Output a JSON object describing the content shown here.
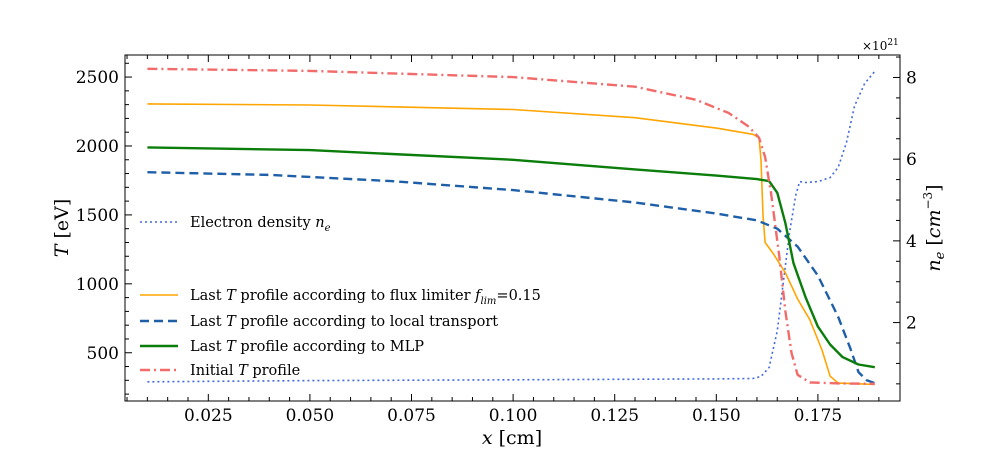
{
  "chart_data": {
    "type": "line",
    "xlabel": "x [cm]",
    "ylabel_left": "T [eV]",
    "ylabel_right": "n_e [cm^-3]",
    "right_axis_multiplier": "×10^21",
    "xlim": [
      0.0045,
      0.1952
    ],
    "ylim_left": [
      150,
      2660
    ],
    "ylim_right": [
      0.08,
      8.55
    ],
    "x_ticks": [
      0.025,
      0.05,
      0.075,
      0.1,
      0.125,
      0.15,
      0.175
    ],
    "x_tick_labels": [
      "0.025",
      "0.050",
      "0.075",
      "0.100",
      "0.125",
      "0.150",
      "0.175"
    ],
    "y_left_ticks": [
      500,
      1000,
      1500,
      2000,
      2500
    ],
    "y_left_tick_labels": [
      "500",
      "1000",
      "1500",
      "2000",
      "2500"
    ],
    "y_right_ticks": [
      2,
      4,
      6,
      8
    ],
    "y_right_tick_labels": [
      "2",
      "4",
      "6",
      "8"
    ],
    "grid": false,
    "legend": [
      {
        "label": "Electron density n_e",
        "color": "#4169e1",
        "dash": "dotted",
        "width": 1.6
      },
      {
        "label": "Last T profile according to flux limiter f_lim=0.15",
        "color": "#ffa500",
        "dash": "solid",
        "width": 1.6
      },
      {
        "label": "Last T profile according to local transport",
        "color": "#1f5fa8",
        "dash": "dashed",
        "width": 2.4
      },
      {
        "label": "Last T profile according to MLP",
        "color": "#0a7d0a",
        "dash": "solid",
        "width": 2.4
      },
      {
        "label": "Initial T profile",
        "color": "#f26b6b",
        "dash": "dashdot",
        "width": 2.4
      }
    ],
    "series": [
      {
        "name": "Electron density n_e",
        "axis": "right",
        "points": [
          [
            0.01,
            0.55
          ],
          [
            0.05,
            0.58
          ],
          [
            0.1,
            0.6
          ],
          [
            0.15,
            0.62
          ],
          [
            0.159,
            0.63
          ],
          [
            0.161,
            0.68
          ],
          [
            0.163,
            0.9
          ],
          [
            0.165,
            1.8
          ],
          [
            0.1665,
            3.0
          ],
          [
            0.168,
            4.2
          ],
          [
            0.1695,
            5.1
          ],
          [
            0.1705,
            5.45
          ],
          [
            0.172,
            5.43
          ],
          [
            0.175,
            5.45
          ],
          [
            0.178,
            5.55
          ],
          [
            0.18,
            5.8
          ],
          [
            0.182,
            6.4
          ],
          [
            0.184,
            7.3
          ],
          [
            0.1865,
            7.85
          ],
          [
            0.189,
            8.15
          ]
        ]
      },
      {
        "name": "Last T profile according to flux limiter f_lim=0.15",
        "axis": "left",
        "points": [
          [
            0.01,
            2305
          ],
          [
            0.05,
            2297
          ],
          [
            0.1,
            2265
          ],
          [
            0.13,
            2205
          ],
          [
            0.15,
            2130
          ],
          [
            0.159,
            2085
          ],
          [
            0.1605,
            2060
          ],
          [
            0.161,
            1900
          ],
          [
            0.1615,
            1500
          ],
          [
            0.162,
            1300
          ],
          [
            0.164,
            1220
          ],
          [
            0.167,
            1080
          ],
          [
            0.17,
            890
          ],
          [
            0.173,
            740
          ],
          [
            0.176,
            520
          ],
          [
            0.178,
            330
          ],
          [
            0.18,
            280
          ],
          [
            0.185,
            275
          ],
          [
            0.189,
            270
          ]
        ]
      },
      {
        "name": "Last T profile according to local transport",
        "axis": "left",
        "points": [
          [
            0.01,
            1810
          ],
          [
            0.04,
            1790
          ],
          [
            0.07,
            1745
          ],
          [
            0.1,
            1680
          ],
          [
            0.13,
            1590
          ],
          [
            0.15,
            1510
          ],
          [
            0.16,
            1460
          ],
          [
            0.165,
            1400
          ],
          [
            0.17,
            1270
          ],
          [
            0.175,
            1060
          ],
          [
            0.18,
            760
          ],
          [
            0.183,
            530
          ],
          [
            0.185,
            360
          ],
          [
            0.187,
            300
          ],
          [
            0.189,
            280
          ]
        ]
      },
      {
        "name": "Last T profile according to MLP",
        "axis": "left",
        "points": [
          [
            0.01,
            1990
          ],
          [
            0.05,
            1970
          ],
          [
            0.1,
            1900
          ],
          [
            0.13,
            1830
          ],
          [
            0.15,
            1785
          ],
          [
            0.16,
            1760
          ],
          [
            0.163,
            1745
          ],
          [
            0.165,
            1660
          ],
          [
            0.167,
            1440
          ],
          [
            0.169,
            1150
          ],
          [
            0.172,
            900
          ],
          [
            0.175,
            690
          ],
          [
            0.178,
            560
          ],
          [
            0.181,
            470
          ],
          [
            0.185,
            415
          ],
          [
            0.189,
            395
          ]
        ]
      },
      {
        "name": "Initial T profile",
        "axis": "left",
        "points": [
          [
            0.01,
            2560
          ],
          [
            0.05,
            2545
          ],
          [
            0.1,
            2500
          ],
          [
            0.13,
            2430
          ],
          [
            0.145,
            2335
          ],
          [
            0.153,
            2240
          ],
          [
            0.158,
            2140
          ],
          [
            0.1605,
            2060
          ],
          [
            0.162,
            1920
          ],
          [
            0.1635,
            1650
          ],
          [
            0.1655,
            1200
          ],
          [
            0.167,
            800
          ],
          [
            0.1685,
            500
          ],
          [
            0.17,
            340
          ],
          [
            0.173,
            285
          ],
          [
            0.18,
            278
          ],
          [
            0.189,
            275
          ]
        ]
      }
    ]
  }
}
